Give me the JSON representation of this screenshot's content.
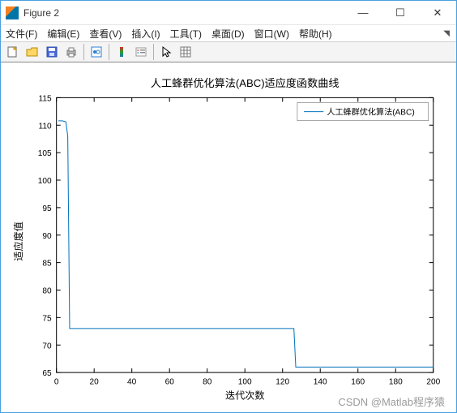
{
  "window": {
    "title": "Figure 2",
    "buttons": {
      "min": "—",
      "max": "☐",
      "close": "✕"
    }
  },
  "menu": {
    "file": "文件(F)",
    "edit": "编辑(E)",
    "view": "查看(V)",
    "insert": "插入(I)",
    "tools": "工具(T)",
    "desktop": "桌面(D)",
    "window": "窗口(W)",
    "help": "帮助(H)"
  },
  "toolbar": {
    "new": "new-figure",
    "open": "open",
    "save": "save",
    "print": "print",
    "link": "link",
    "colorbar": "colorbar",
    "legend": "legend",
    "cursor": "cursor",
    "grid": "grid"
  },
  "chart": {
    "type": "line",
    "title": "人工蜂群优化算法(ABC)适应度函数曲线",
    "title_fontsize": 13,
    "xlabel": "迭代次数",
    "ylabel": "适应度值",
    "label_fontsize": 12,
    "tick_fontsize": 10,
    "xlim": [
      0,
      200
    ],
    "ylim": [
      65,
      115
    ],
    "xticks": [
      0,
      20,
      40,
      60,
      80,
      100,
      120,
      140,
      160,
      180,
      200
    ],
    "yticks": [
      65,
      70,
      75,
      80,
      85,
      90,
      95,
      100,
      105,
      110,
      115
    ],
    "background_color": "#ffffff",
    "axis_color": "#000000",
    "line_color": "#0072bd",
    "line_width": 1,
    "legend": {
      "label": "人工蜂群优化算法(ABC)",
      "position": "northeast"
    },
    "data": {
      "x": [
        1,
        2,
        3,
        4,
        5,
        6,
        7,
        126,
        127,
        128,
        200
      ],
      "y": [
        110.8,
        110.8,
        110.8,
        110.7,
        110.6,
        108.0,
        73.0,
        73.0,
        66.0,
        66.0,
        66.0
      ]
    }
  },
  "watermark": "CSDN @Matlab程序猿"
}
